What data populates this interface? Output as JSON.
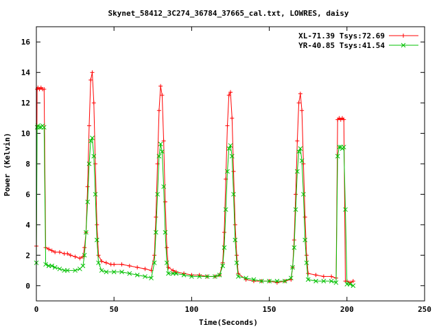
{
  "chart_data": {
    "type": "line",
    "title": "Skynet_58412_3C274_36784_37665_cal.txt, LOWRES, daisy",
    "xlabel": "Time(Seconds)",
    "ylabel": "Power (Kelvin)",
    "xlim": [
      0,
      250
    ],
    "ylim": [
      -1,
      17
    ],
    "xticks": [
      "0",
      "50",
      "100",
      "150",
      "200",
      "250"
    ],
    "yticks": [
      "0",
      "2",
      "4",
      "6",
      "8",
      "10",
      "12",
      "14",
      "16"
    ],
    "legend_position": "top-right",
    "grid": false,
    "series": [
      {
        "name": "XL-71.39 Tsys:72.69",
        "color": "#ff0000",
        "marker": "plus",
        "points": [
          [
            0,
            2.6
          ],
          [
            0.5,
            12.9
          ],
          [
            1,
            13.0
          ],
          [
            2,
            12.9
          ],
          [
            3,
            13.0
          ],
          [
            4,
            12.9
          ],
          [
            5,
            12.9
          ],
          [
            6,
            2.5
          ],
          [
            8,
            2.4
          ],
          [
            10,
            2.3
          ],
          [
            12,
            2.2
          ],
          [
            15,
            2.2
          ],
          [
            18,
            2.1
          ],
          [
            20,
            2.1
          ],
          [
            22,
            2.0
          ],
          [
            25,
            1.9
          ],
          [
            28,
            1.8
          ],
          [
            30,
            1.9
          ],
          [
            31,
            2.5
          ],
          [
            32,
            3.5
          ],
          [
            33,
            6.5
          ],
          [
            34,
            10.5
          ],
          [
            35,
            13.5
          ],
          [
            36,
            14.0
          ],
          [
            37,
            12.0
          ],
          [
            38,
            8.0
          ],
          [
            39,
            4.0
          ],
          [
            40,
            2.0
          ],
          [
            42,
            1.6
          ],
          [
            45,
            1.5
          ],
          [
            48,
            1.4
          ],
          [
            50,
            1.4
          ],
          [
            55,
            1.4
          ],
          [
            60,
            1.3
          ],
          [
            65,
            1.2
          ],
          [
            70,
            1.1
          ],
          [
            74,
            1.0
          ],
          [
            76,
            2.0
          ],
          [
            77,
            4.5
          ],
          [
            78,
            8.0
          ],
          [
            79,
            11.5
          ],
          [
            80,
            13.1
          ],
          [
            81,
            12.5
          ],
          [
            82,
            9.5
          ],
          [
            83,
            5.5
          ],
          [
            84,
            2.5
          ],
          [
            85,
            1.2
          ],
          [
            88,
            1.0
          ],
          [
            90,
            0.9
          ],
          [
            95,
            0.8
          ],
          [
            100,
            0.7
          ],
          [
            105,
            0.7
          ],
          [
            110,
            0.6
          ],
          [
            115,
            0.6
          ],
          [
            118,
            0.7
          ],
          [
            120,
            1.5
          ],
          [
            121,
            3.5
          ],
          [
            122,
            7.0
          ],
          [
            123,
            10.5
          ],
          [
            124,
            12.5
          ],
          [
            125,
            12.7
          ],
          [
            126,
            11.0
          ],
          [
            127,
            7.5
          ],
          [
            128,
            4.0
          ],
          [
            129,
            2.0
          ],
          [
            130,
            0.8
          ],
          [
            135,
            0.4
          ],
          [
            140,
            0.3
          ],
          [
            145,
            0.3
          ],
          [
            150,
            0.3
          ],
          [
            155,
            0.2
          ],
          [
            160,
            0.3
          ],
          [
            164,
            0.4
          ],
          [
            165,
            1.2
          ],
          [
            166,
            3.0
          ],
          [
            167,
            6.0
          ],
          [
            168,
            9.5
          ],
          [
            169,
            12.0
          ],
          [
            170,
            12.6
          ],
          [
            171,
            11.5
          ],
          [
            172,
            8.0
          ],
          [
            173,
            4.5
          ],
          [
            174,
            2.0
          ],
          [
            175,
            0.8
          ],
          [
            180,
            0.7
          ],
          [
            185,
            0.6
          ],
          [
            190,
            0.6
          ],
          [
            193,
            0.5
          ],
          [
            194,
            10.9
          ],
          [
            195,
            11.0
          ],
          [
            196,
            10.9
          ],
          [
            197,
            11.0
          ],
          [
            198,
            10.9
          ],
          [
            199,
            0.3
          ],
          [
            200,
            0.3
          ],
          [
            202,
            0.2
          ],
          [
            204,
            0.3
          ]
        ]
      },
      {
        "name": "YR-40.85 Tsys:41.54",
        "color": "#00c000",
        "marker": "cross",
        "points": [
          [
            0,
            1.5
          ],
          [
            0.5,
            10.4
          ],
          [
            1,
            10.5
          ],
          [
            2,
            10.4
          ],
          [
            3,
            10.4
          ],
          [
            4,
            10.5
          ],
          [
            5,
            10.4
          ],
          [
            6,
            1.4
          ],
          [
            8,
            1.3
          ],
          [
            10,
            1.3
          ],
          [
            12,
            1.2
          ],
          [
            15,
            1.1
          ],
          [
            18,
            1.0
          ],
          [
            20,
            1.0
          ],
          [
            25,
            1.0
          ],
          [
            28,
            1.1
          ],
          [
            30,
            1.3
          ],
          [
            31,
            2.0
          ],
          [
            32,
            3.5
          ],
          [
            33,
            5.5
          ],
          [
            34,
            8.0
          ],
          [
            35,
            9.5
          ],
          [
            36,
            9.7
          ],
          [
            37,
            8.5
          ],
          [
            38,
            6.0
          ],
          [
            39,
            3.0
          ],
          [
            40,
            1.5
          ],
          [
            42,
            1.0
          ],
          [
            45,
            0.9
          ],
          [
            50,
            0.9
          ],
          [
            55,
            0.9
          ],
          [
            60,
            0.8
          ],
          [
            65,
            0.7
          ],
          [
            70,
            0.6
          ],
          [
            74,
            0.5
          ],
          [
            76,
            1.5
          ],
          [
            77,
            3.5
          ],
          [
            78,
            6.0
          ],
          [
            79,
            8.5
          ],
          [
            80,
            9.3
          ],
          [
            81,
            8.8
          ],
          [
            82,
            6.5
          ],
          [
            83,
            3.5
          ],
          [
            84,
            1.5
          ],
          [
            85,
            0.8
          ],
          [
            88,
            0.8
          ],
          [
            90,
            0.8
          ],
          [
            95,
            0.7
          ],
          [
            100,
            0.6
          ],
          [
            105,
            0.6
          ],
          [
            110,
            0.6
          ],
          [
            115,
            0.6
          ],
          [
            118,
            0.7
          ],
          [
            120,
            1.3
          ],
          [
            121,
            2.5
          ],
          [
            122,
            5.0
          ],
          [
            123,
            7.5
          ],
          [
            124,
            9.0
          ],
          [
            125,
            9.2
          ],
          [
            126,
            8.5
          ],
          [
            127,
            6.0
          ],
          [
            128,
            3.0
          ],
          [
            129,
            1.5
          ],
          [
            130,
            0.6
          ],
          [
            135,
            0.5
          ],
          [
            140,
            0.4
          ],
          [
            145,
            0.3
          ],
          [
            150,
            0.3
          ],
          [
            155,
            0.3
          ],
          [
            160,
            0.3
          ],
          [
            164,
            0.5
          ],
          [
            165,
            1.2
          ],
          [
            166,
            2.5
          ],
          [
            167,
            5.0
          ],
          [
            168,
            7.5
          ],
          [
            169,
            8.8
          ],
          [
            170,
            9.0
          ],
          [
            171,
            8.2
          ],
          [
            172,
            6.0
          ],
          [
            173,
            3.0
          ],
          [
            174,
            1.5
          ],
          [
            175,
            0.4
          ],
          [
            180,
            0.3
          ],
          [
            185,
            0.3
          ],
          [
            190,
            0.3
          ],
          [
            193,
            0.2
          ],
          [
            194,
            8.5
          ],
          [
            195,
            9.1
          ],
          [
            196,
            9.1
          ],
          [
            197,
            9.0
          ],
          [
            198,
            9.1
          ],
          [
            199,
            5.0
          ],
          [
            200,
            0.1
          ],
          [
            202,
            0.1
          ],
          [
            204,
            0.0
          ]
        ]
      }
    ]
  }
}
